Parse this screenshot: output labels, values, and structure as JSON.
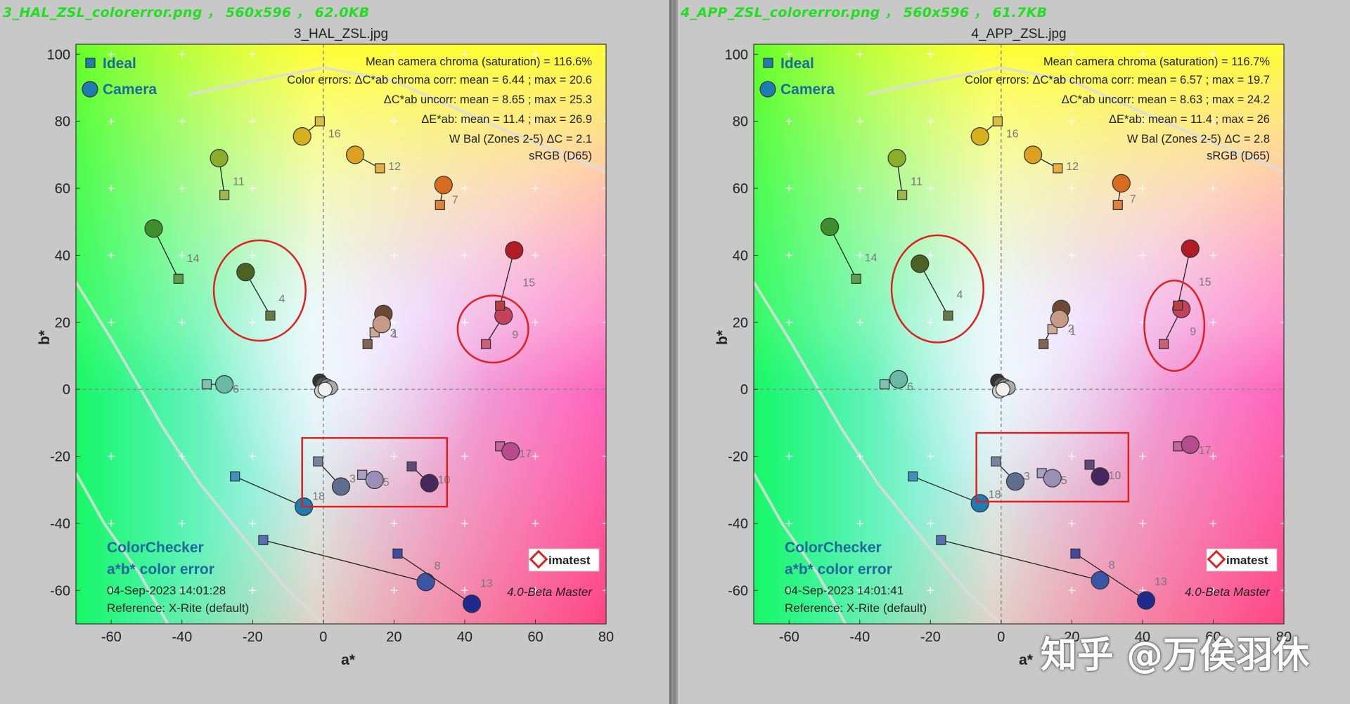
{
  "watermark": "知乎 @万俟羽休",
  "chart_data": [
    {
      "type": "scatter",
      "header": "3_HAL_ZSL_colorerror.png  ，  560x596  ，  62.0KB",
      "title": "3_HAL_ZSL.jpg",
      "xlabel": "a*",
      "ylabel": "b*",
      "xlim": [
        -70,
        80
      ],
      "ylim": [
        -70,
        103
      ],
      "xticks": [
        -60,
        -40,
        -20,
        0,
        20,
        40,
        60,
        80
      ],
      "yticks": [
        -60,
        -40,
        -20,
        0,
        20,
        40,
        60,
        80,
        100
      ],
      "legend": [
        "Ideal",
        "Camera"
      ],
      "stats": [
        "Mean camera chroma (saturation) = 116.6%",
        "Color errors: ΔC*ab chroma corr:  mean = 6.44 ;  max = 20.6",
        "ΔC*ab uncorr:  mean = 8.65 ;  max = 25.3",
        "ΔE*ab:  mean = 11.4 ;  max = 26.9",
        "W Bal (Zones 2-5) ΔC = 2.1",
        "sRGB (D65)"
      ],
      "footer": [
        "ColorChecker",
        "a*b* color error",
        "04-Sep-2023 14:01:28",
        "Reference: X-Rite (default)"
      ],
      "logo": "imatest",
      "version": "4.0-Beta  Master",
      "patches": [
        {
          "id": "1",
          "ideal": [
            12.5,
            13.5
          ],
          "camera": [
            17,
            22.5
          ],
          "color": "#6e4a36"
        },
        {
          "id": "2",
          "ideal": [
            14.5,
            17
          ],
          "camera": [
            16.5,
            19.5
          ],
          "color": "#c79a85"
        },
        {
          "id": "3",
          "ideal": [
            -1.5,
            -21.5
          ],
          "camera": [
            5,
            -29
          ],
          "color": "#5f6e8f"
        },
        {
          "id": "4",
          "ideal": [
            -15,
            22
          ],
          "camera": [
            -22,
            35
          ],
          "color": "#4c6224"
        },
        {
          "id": "5",
          "ideal": [
            11,
            -25.5
          ],
          "camera": [
            14.5,
            -27
          ],
          "color": "#9a8fb8"
        },
        {
          "id": "6",
          "ideal": [
            -33,
            1.5
          ],
          "camera": [
            -28,
            1.5
          ],
          "color": "#6ab8a6"
        },
        {
          "id": "7",
          "ideal": [
            33,
            55
          ],
          "camera": [
            34,
            61
          ],
          "color": "#d86c1e"
        },
        {
          "id": "8",
          "ideal": [
            -17,
            -45
          ],
          "camera": [
            29,
            -57.5
          ],
          "color": "#3b55a6"
        },
        {
          "id": "9",
          "ideal": [
            46,
            13.5
          ],
          "camera": [
            51,
            22
          ],
          "color": "#c4425a"
        },
        {
          "id": "10",
          "ideal": [
            25,
            -23
          ],
          "camera": [
            30,
            -28
          ],
          "color": "#46285e"
        },
        {
          "id": "11",
          "ideal": [
            -28,
            58
          ],
          "camera": [
            -29.5,
            69
          ],
          "color": "#8aae2a"
        },
        {
          "id": "12",
          "ideal": [
            16,
            66
          ],
          "camera": [
            9,
            70
          ],
          "color": "#dea021"
        },
        {
          "id": "13",
          "ideal": [
            21,
            -49
          ],
          "camera": [
            42,
            -64
          ],
          "color": "#1e2a8e"
        },
        {
          "id": "14",
          "ideal": [
            -41,
            33
          ],
          "camera": [
            -48,
            48
          ],
          "color": "#3f8e2e"
        },
        {
          "id": "15",
          "ideal": [
            50,
            25
          ],
          "camera": [
            54,
            41.5
          ],
          "color": "#b01c22"
        },
        {
          "id": "16",
          "ideal": [
            -1,
            80
          ],
          "camera": [
            -6,
            75.5
          ],
          "color": "#d6b11e"
        },
        {
          "id": "17",
          "ideal": [
            50,
            -17
          ],
          "camera": [
            53,
            -18.5
          ],
          "color": "#b84a8e"
        },
        {
          "id": "18",
          "ideal": [
            -25,
            -26
          ],
          "camera": [
            -5.5,
            -35
          ],
          "color": "#1e7cb0"
        }
      ],
      "neutrals": [
        [
          -1,
          2.5
        ],
        [
          0,
          1.5
        ],
        [
          1,
          1
        ],
        [
          2,
          0.5
        ],
        [
          -0.5,
          -0.5
        ],
        [
          0.5,
          0
        ]
      ],
      "annotations": [
        {
          "shape": "ellipse",
          "center": [
            -18,
            29.5
          ],
          "radii": [
            13,
            15
          ]
        },
        {
          "shape": "ellipse",
          "center": [
            48,
            18
          ],
          "radii": [
            10,
            10
          ]
        },
        {
          "shape": "rect",
          "x": [
            -6,
            35
          ],
          "y": [
            -35,
            -14.5
          ]
        }
      ]
    },
    {
      "type": "scatter",
      "header": "4_APP_ZSL_colorerror.png  ，  560x596  ，  61.7KB",
      "title": "4_APP_ZSL.jpg",
      "xlabel": "a*",
      "ylabel": "b*",
      "xlim": [
        -70,
        80
      ],
      "ylim": [
        -70,
        103
      ],
      "xticks": [
        -60,
        -40,
        -20,
        0,
        20,
        40,
        60,
        80
      ],
      "yticks": [
        -60,
        -40,
        -20,
        0,
        20,
        40,
        60,
        80,
        100
      ],
      "legend": [
        "Ideal",
        "Camera"
      ],
      "stats": [
        "Mean camera chroma (saturation) = 116.7%",
        "Color errors: ΔC*ab chroma corr:  mean = 6.57 ;  max = 19.7",
        "ΔC*ab uncorr:  mean = 8.63 ;  max = 24.2",
        "ΔE*ab:  mean = 11.4 ;  max = 26",
        "W Bal (Zones 2-5) ΔC = 2.8",
        "sRGB (D65)"
      ],
      "footer": [
        "ColorChecker",
        "a*b* color error",
        "04-Sep-2023 14:01:41",
        "Reference: X-Rite (default)"
      ],
      "logo": "imatest",
      "version": "4.0-Beta  Master",
      "patches": [
        {
          "id": "1",
          "ideal": [
            12,
            13.5
          ],
          "camera": [
            17,
            24
          ],
          "color": "#6e4a36"
        },
        {
          "id": "2",
          "ideal": [
            14.5,
            18
          ],
          "camera": [
            16.5,
            21
          ],
          "color": "#c79a85"
        },
        {
          "id": "3",
          "ideal": [
            -1.5,
            -21.5
          ],
          "camera": [
            4,
            -27.5
          ],
          "color": "#5f6e8f"
        },
        {
          "id": "4",
          "ideal": [
            -15,
            22
          ],
          "camera": [
            -23,
            37.5
          ],
          "color": "#4c6224"
        },
        {
          "id": "5",
          "ideal": [
            11.5,
            -25
          ],
          "camera": [
            14.5,
            -26.5
          ],
          "color": "#9a8fb8"
        },
        {
          "id": "6",
          "ideal": [
            -33,
            1.5
          ],
          "camera": [
            -29,
            3
          ],
          "color": "#6ab8a6"
        },
        {
          "id": "7",
          "ideal": [
            33,
            55
          ],
          "camera": [
            34,
            61.5
          ],
          "color": "#d86c1e"
        },
        {
          "id": "8",
          "ideal": [
            -17,
            -45
          ],
          "camera": [
            28,
            -57
          ],
          "color": "#3b55a6"
        },
        {
          "id": "9",
          "ideal": [
            46,
            13.5
          ],
          "camera": [
            51,
            24
          ],
          "color": "#c4425a"
        },
        {
          "id": "10",
          "ideal": [
            25,
            -22.5
          ],
          "camera": [
            28,
            -26
          ],
          "color": "#46285e"
        },
        {
          "id": "11",
          "ideal": [
            -28,
            58
          ],
          "camera": [
            -29.5,
            69
          ],
          "color": "#8aae2a"
        },
        {
          "id": "12",
          "ideal": [
            16,
            66
          ],
          "camera": [
            9,
            70
          ],
          "color": "#dea021"
        },
        {
          "id": "13",
          "ideal": [
            21,
            -49
          ],
          "camera": [
            41,
            -63
          ],
          "color": "#1e2a8e"
        },
        {
          "id": "14",
          "ideal": [
            -41,
            33
          ],
          "camera": [
            -48.5,
            48.5
          ],
          "color": "#3f8e2e"
        },
        {
          "id": "15",
          "ideal": [
            50,
            25
          ],
          "camera": [
            53.5,
            42
          ],
          "color": "#b01c22"
        },
        {
          "id": "16",
          "ideal": [
            -1,
            80
          ],
          "camera": [
            -6,
            75.5
          ],
          "color": "#d6b11e"
        },
        {
          "id": "17",
          "ideal": [
            50,
            -17
          ],
          "camera": [
            53.5,
            -16.5
          ],
          "color": "#b84a8e"
        },
        {
          "id": "18",
          "ideal": [
            -25,
            -26
          ],
          "camera": [
            -6,
            -34
          ],
          "color": "#1e7cb0"
        }
      ],
      "neutrals": [
        [
          -1,
          2.5
        ],
        [
          0,
          1.5
        ],
        [
          1,
          1
        ],
        [
          2,
          0.5
        ],
        [
          -0.5,
          -0.5
        ],
        [
          0.5,
          0
        ]
      ],
      "annotations": [
        {
          "shape": "ellipse",
          "center": [
            -18,
            30
          ],
          "radii": [
            13,
            16
          ]
        },
        {
          "shape": "ellipse",
          "center": [
            49,
            19
          ],
          "radii": [
            8.5,
            13.5
          ]
        },
        {
          "shape": "rect",
          "x": [
            -7,
            36
          ],
          "y": [
            -33.5,
            -13
          ]
        }
      ]
    }
  ]
}
